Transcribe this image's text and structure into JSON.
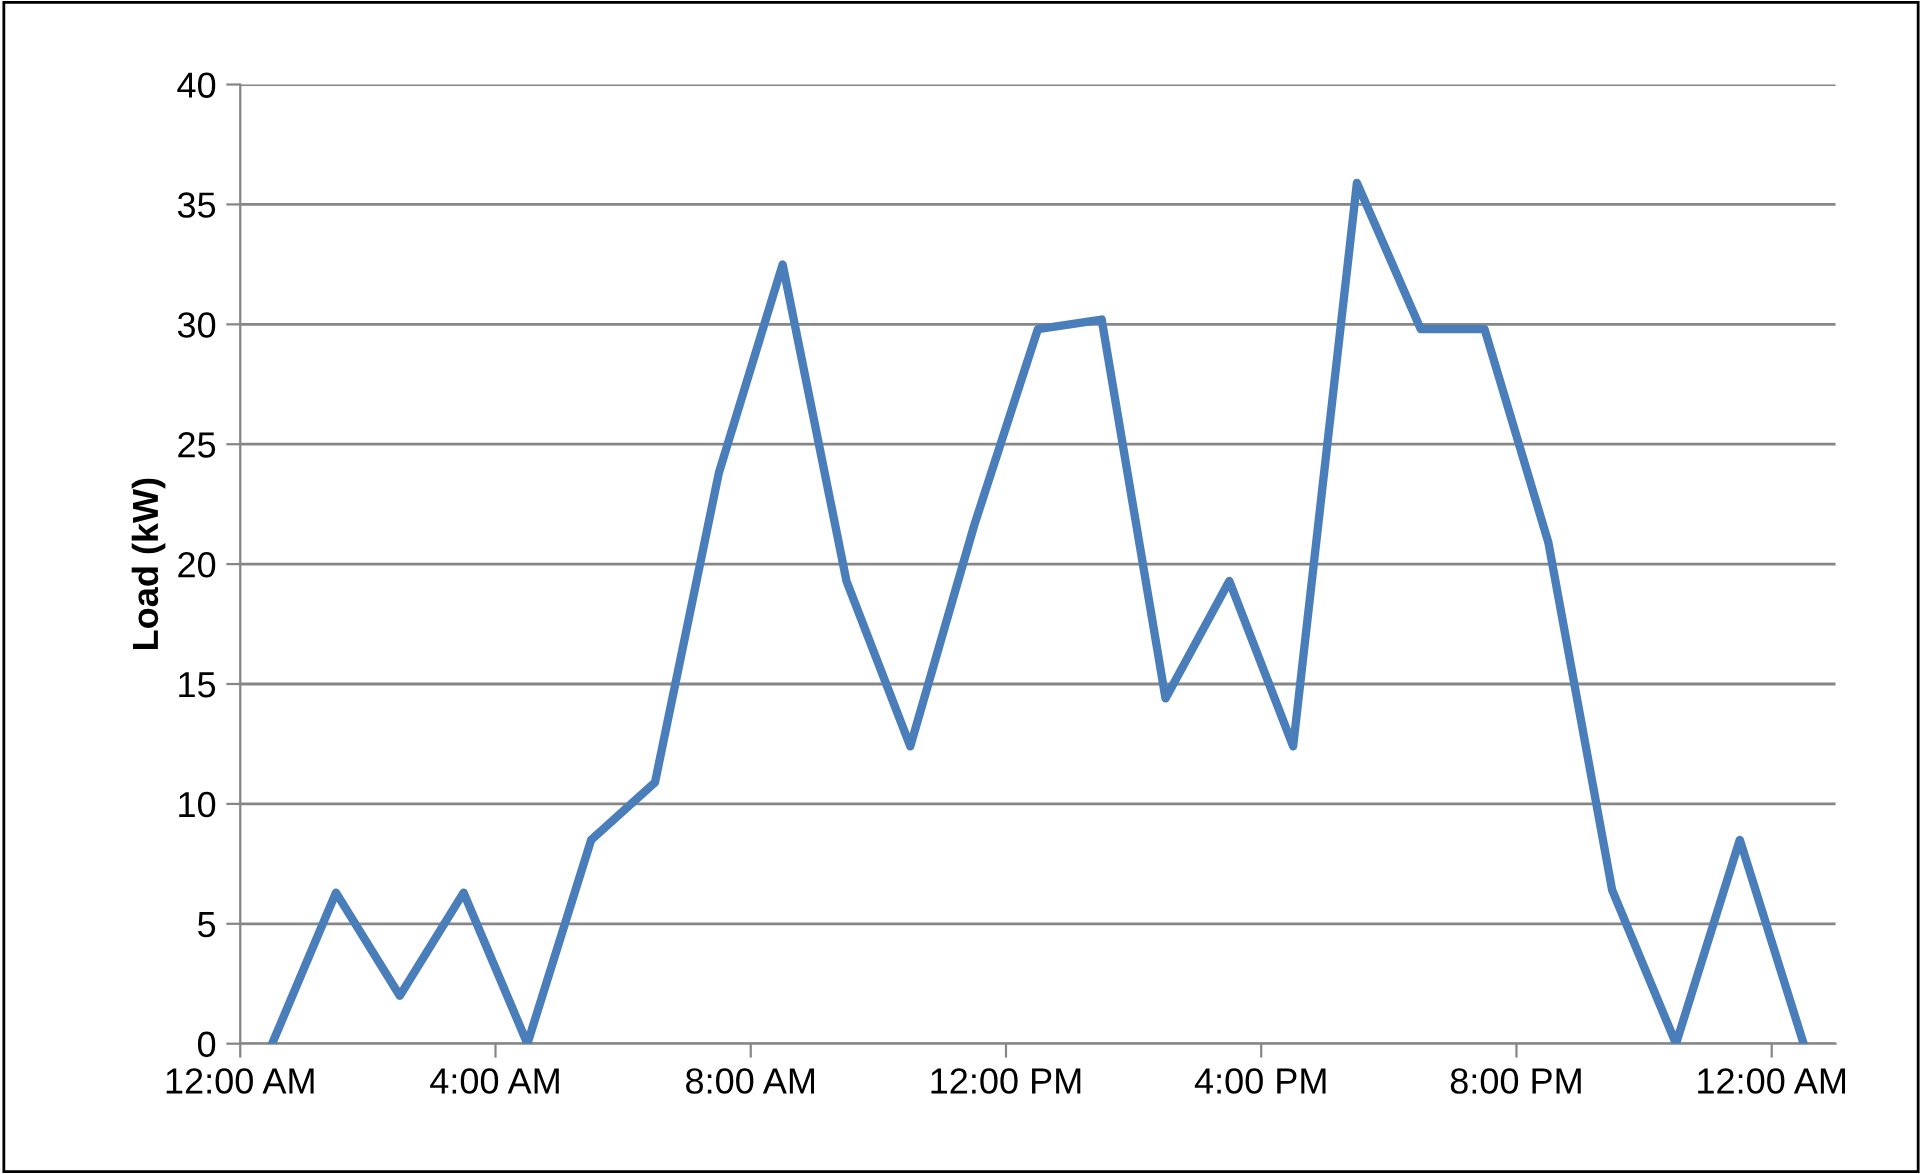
{
  "chart_data": {
    "type": "line",
    "ylabel": "Load (kW)",
    "x": [
      0.5,
      1.5,
      2.5,
      3.5,
      4.5,
      5.5,
      6.5,
      7.5,
      8.5,
      9.5,
      10.5,
      11.5,
      12.5,
      13.5,
      14.5,
      15.5,
      16.5,
      17.5,
      18.5,
      19.5,
      20.5,
      21.5,
      22.5,
      23.5,
      24.5
    ],
    "series": [
      {
        "color": "#4a7ebb",
        "values": [
          0,
          6.3,
          2,
          6.3,
          0,
          8.5,
          10.9,
          23.8,
          32.5,
          19.3,
          12.4,
          21.6,
          29.8,
          30.2,
          14.4,
          19.3,
          12.4,
          35.9,
          29.8,
          29.8,
          20.9,
          6.4,
          0,
          8.5,
          0
        ]
      }
    ],
    "xlim": [
      0,
      25
    ],
    "ylim": [
      0,
      40
    ],
    "xticks": [
      {
        "value": 0,
        "label": "12:00 AM"
      },
      {
        "value": 4,
        "label": "4:00 AM"
      },
      {
        "value": 8,
        "label": "8:00 AM"
      },
      {
        "value": 12,
        "label": "12:00 PM"
      },
      {
        "value": 16,
        "label": "4:00 PM"
      },
      {
        "value": 20,
        "label": "8:00 PM"
      },
      {
        "value": 24,
        "label": "12:00 AM"
      }
    ],
    "yticks": [
      0,
      5,
      10,
      15,
      20,
      25,
      30,
      35,
      40
    ],
    "grid": "y",
    "marker": "none",
    "line_style": "solid"
  }
}
